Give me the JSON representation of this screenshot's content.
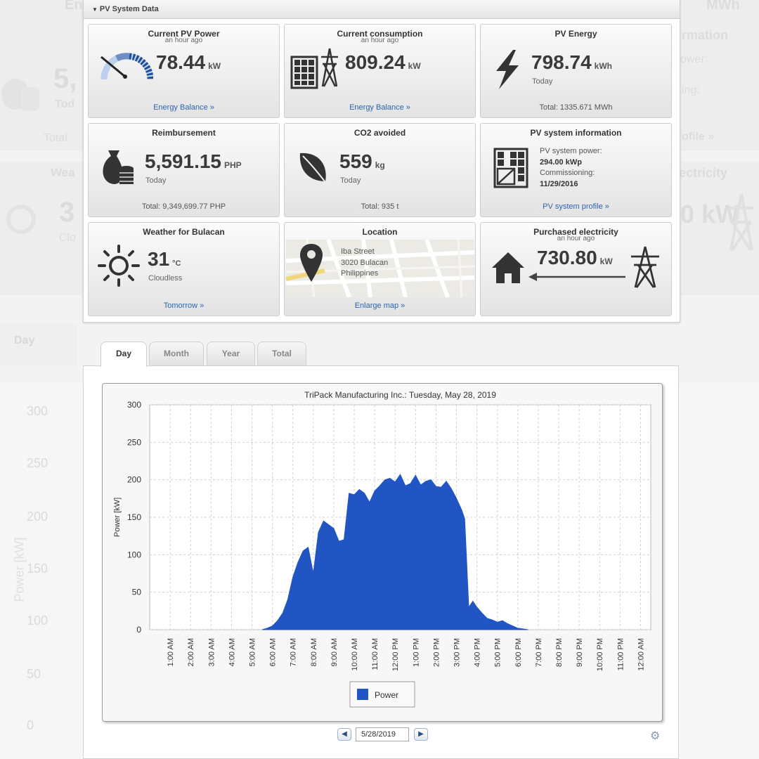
{
  "ghost": {
    "reimb_value": "5,",
    "reimb_note": "Tod",
    "reimb_total": "Total",
    "weather_label": "Wea",
    "weather_temp": "3",
    "weather_note": "Clo",
    "tab_day": "Day",
    "axis_values": [
      "300",
      "250",
      "200",
      "150",
      "100",
      "50",
      "0"
    ],
    "axis_label": "Power [kW]",
    "right_info": "rmation",
    "right_power": "ower:",
    "right_ing": "ing:",
    "right_profile": "ofile »",
    "right_electricity": "ectricity",
    "right_kw": "0 kW",
    "right_top": "MWh",
    "left_top": "En"
  },
  "panel": {
    "title": "PV System Data"
  },
  "tiles": {
    "current_pv_power": {
      "title": "Current PV Power",
      "sub": "an hour ago",
      "value": "78.44",
      "unit": "kW",
      "link": "Energy Balance »",
      "icon": "gauge-icon"
    },
    "current_consumption": {
      "title": "Current consumption",
      "sub": "an hour ago",
      "value": "809.24",
      "unit": "kW",
      "link": "Energy Balance »",
      "icon": "solar-panel-tower-icon"
    },
    "pv_energy": {
      "title": "PV Energy",
      "value": "798.74",
      "unit": "kWh",
      "note": "Today",
      "total": "Total: 1335.671 MWh",
      "icon": "lightning-icon"
    },
    "reimbursement": {
      "title": "Reimbursement",
      "value": "5,591.15",
      "unit": "PHP",
      "note": "Today",
      "total": "Total: 9,349,699.77 PHP",
      "icon": "money-bag-icon"
    },
    "co2_avoided": {
      "title": "CO2 avoided",
      "value": "559",
      "unit": "kg",
      "note": "Today",
      "total": "Total: 935 t",
      "icon": "leaf-icon"
    },
    "pv_system_info": {
      "title": "PV system information",
      "power_label": "PV system power:",
      "power_value": "294.00 kWp",
      "commission_label": "Commissioning:",
      "commission_value": "11/29/2016",
      "link": "PV system profile »",
      "icon": "solar-panel-icon"
    },
    "weather": {
      "title": "Weather for Bulacan",
      "value": "31",
      "unit": "°C",
      "note": "Cloudless",
      "link": "Tomorrow »",
      "icon": "sun-icon"
    },
    "location": {
      "title": "Location",
      "line1": "Iba Street",
      "line2": "3020 Bulacan",
      "line3": "Philippines",
      "link": "Enlarge map »",
      "icon": "map-pin-icon"
    },
    "purchased": {
      "title": "Purchased electricity",
      "sub": "an hour ago",
      "value": "730.80",
      "unit": "kW",
      "icon": "house-tower-icon"
    }
  },
  "tabs": [
    "Day",
    "Month",
    "Year",
    "Total"
  ],
  "active_tab": "Day",
  "date_nav": {
    "date": "5/28/2019",
    "prev": "◀",
    "next": "▶"
  },
  "chart_data": {
    "type": "area",
    "title": "TriPack Manufacturing Inc.: Tuesday, May 28, 2019",
    "ylabel": "Power [kW]",
    "xlabel": "",
    "ylim": [
      0,
      300
    ],
    "yticks": [
      0,
      50,
      100,
      150,
      200,
      250,
      300
    ],
    "xticks": [
      "1:00 AM",
      "2:00 AM",
      "3:00 AM",
      "4:00 AM",
      "5:00 AM",
      "6:00 AM",
      "7:00 AM",
      "8:00 AM",
      "9:00 AM",
      "10:00 AM",
      "11:00 AM",
      "12:00 PM",
      "1:00 PM",
      "2:00 PM",
      "3:00 PM",
      "4:00 PM",
      "5:00 PM",
      "6:00 PM",
      "7:00 PM",
      "8:00 PM",
      "9:00 PM",
      "10:00 PM",
      "11:00 PM",
      "12:00 AM"
    ],
    "grid": true,
    "legend": "bottom-center",
    "color": "#2255c4",
    "series": [
      {
        "name": "Power",
        "x": [
          5.5,
          5.75,
          6.0,
          6.25,
          6.5,
          6.75,
          7.0,
          7.25,
          7.5,
          7.75,
          8.0,
          8.25,
          8.5,
          8.75,
          9.0,
          9.25,
          9.5,
          9.75,
          10.0,
          10.25,
          10.5,
          10.75,
          11.0,
          11.25,
          11.5,
          11.75,
          12.0,
          12.25,
          12.5,
          12.75,
          13.0,
          13.25,
          13.5,
          13.75,
          14.0,
          14.25,
          14.5,
          14.75,
          15.0,
          15.25,
          15.4,
          15.6,
          15.8,
          16.0,
          16.25,
          16.5,
          16.75,
          17.0,
          17.25,
          17.5,
          17.75,
          18.0,
          18.25,
          18.5
        ],
        "y": [
          0,
          2,
          5,
          12,
          22,
          40,
          70,
          90,
          105,
          110,
          75,
          130,
          145,
          140,
          135,
          118,
          120,
          182,
          180,
          187,
          182,
          170,
          185,
          192,
          200,
          202,
          197,
          207,
          192,
          195,
          206,
          193,
          198,
          200,
          191,
          190,
          198,
          188,
          175,
          160,
          148,
          30,
          38,
          30,
          22,
          15,
          13,
          10,
          12,
          8,
          5,
          2,
          1,
          0
        ]
      }
    ]
  }
}
